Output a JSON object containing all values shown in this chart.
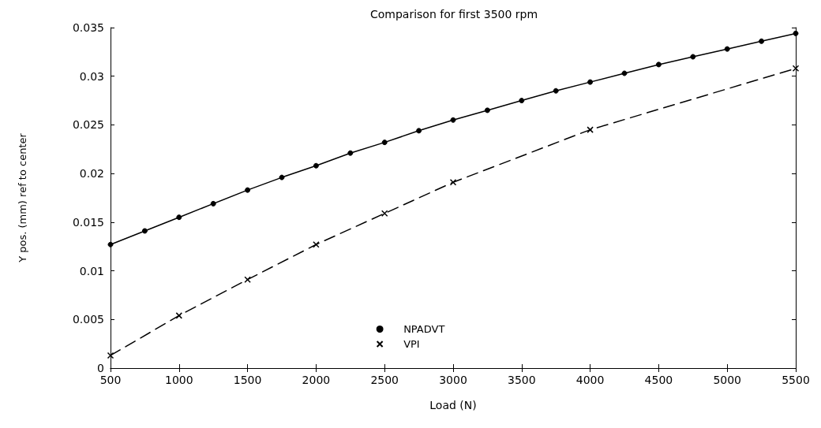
{
  "chart_data": {
    "type": "line",
    "title": "Comparison for first 3500 rpm",
    "xlabel": "Load (N)",
    "ylabel": "Y pos. (mm) ref to center",
    "xlim": [
      500,
      5500
    ],
    "xticks": [
      500,
      1000,
      1500,
      2000,
      2500,
      3000,
      3500,
      4000,
      4500,
      5000,
      5500
    ],
    "ylim": [
      0,
      0.035
    ],
    "yticks": [
      0,
      0.005,
      0.01,
      0.015,
      0.02,
      0.025,
      0.03,
      0.035
    ],
    "grid": false,
    "legend": "bottom",
    "series": [
      {
        "name": "NPADVT",
        "color": "#000000",
        "marker": "circle",
        "line_style": "solid",
        "x": [
          500,
          750,
          1000,
          1250,
          1500,
          1750,
          2000,
          2250,
          2500,
          2750,
          3000,
          3250,
          3500,
          3750,
          4000,
          4250,
          4500,
          4750,
          5000,
          5250,
          5500
        ],
        "values": [
          0.0127,
          0.0141,
          0.0155,
          0.0169,
          0.0183,
          0.0196,
          0.0208,
          0.0221,
          0.0232,
          0.0244,
          0.0255,
          0.0265,
          0.0275,
          0.0285,
          0.0294,
          0.0303,
          0.0312,
          0.032,
          0.0328,
          0.0336,
          0.0344
        ]
      },
      {
        "name": "VPI",
        "color": "#000000",
        "marker": "cross",
        "line_style": "dashed",
        "x": [
          500,
          1000,
          1500,
          2000,
          2500,
          3000,
          4000,
          5500
        ],
        "values": [
          0.0013,
          0.0054,
          0.0091,
          0.0127,
          0.0159,
          0.0191,
          0.0245,
          0.0308
        ]
      }
    ]
  }
}
